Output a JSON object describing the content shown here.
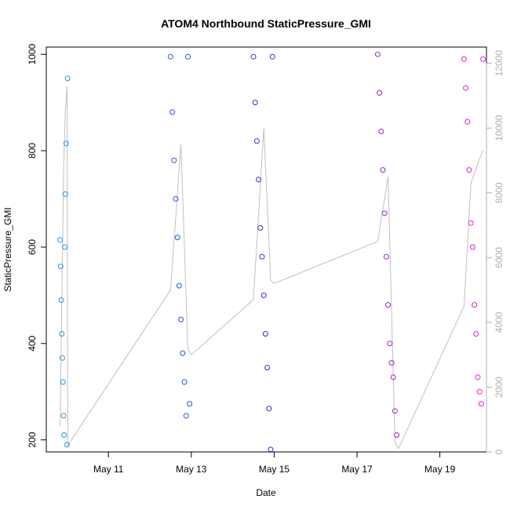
{
  "chart_data": {
    "type": "scatter",
    "title": "ATOM4 Northbound StaticPressure_GMI",
    "xlabel": "Date",
    "ylabel": "StaticPressure_GMI",
    "x_ticks": [
      "May 11",
      "May 13",
      "May 15",
      "May 17",
      "May 19"
    ],
    "y_ticks": [
      200,
      400,
      600,
      800,
      1000
    ],
    "y2_ticks": [
      0,
      2000,
      4000,
      6000,
      8000,
      10000,
      12000
    ],
    "xlim": [
      "2016-05-09T12:00",
      "2016-05-20T03:00"
    ],
    "ylim": [
      175,
      1015
    ],
    "y2lim": [
      0,
      12500
    ],
    "grid": false,
    "legend": "none",
    "colors": {
      "marker_start": "#1e9fe8",
      "marker_mid": "#2b2be0",
      "marker_end": "#f21bd0",
      "altitude_line": "#c0c0c0",
      "axis": "#000000",
      "right_axis": "#b0b0b0"
    },
    "series": [
      {
        "kind": "markers",
        "x": [
          "2016-05-09T20:00",
          "2016-05-09T20:20",
          "2016-05-09T20:40",
          "2016-05-09T21:00",
          "2016-05-09T21:20",
          "2016-05-09T21:40",
          "2016-05-09T22:00",
          "2016-05-09T22:20",
          "2016-05-09T22:40",
          "2016-05-09T23:00",
          "2016-05-09T23:30",
          "2016-05-10T00:00",
          "2016-05-10T00:20"
        ],
        "values": [
          615,
          560,
          490,
          420,
          370,
          320,
          250,
          210,
          600,
          710,
          815,
          190,
          950
        ]
      },
      {
        "kind": "markers",
        "x": [
          "2016-05-12T12:00",
          "2016-05-12T13:00",
          "2016-05-12T14:00",
          "2016-05-12T15:00",
          "2016-05-12T16:00",
          "2016-05-12T17:00",
          "2016-05-12T18:00",
          "2016-05-12T19:00",
          "2016-05-12T20:00",
          "2016-05-12T21:00",
          "2016-05-12T22:00",
          "2016-05-12T23:00"
        ],
        "values": [
          995,
          880,
          780,
          700,
          620,
          520,
          450,
          380,
          320,
          250,
          995,
          275
        ]
      },
      {
        "kind": "markers",
        "x": [
          "2016-05-14T12:00",
          "2016-05-14T13:00",
          "2016-05-14T14:00",
          "2016-05-14T15:00",
          "2016-05-14T16:00",
          "2016-05-14T17:00",
          "2016-05-14T18:00",
          "2016-05-14T19:00",
          "2016-05-14T20:00",
          "2016-05-14T21:00",
          "2016-05-14T22:00",
          "2016-05-14T23:00"
        ],
        "values": [
          995,
          900,
          820,
          740,
          640,
          580,
          500,
          420,
          350,
          265,
          180,
          995
        ]
      },
      {
        "kind": "markers",
        "x": [
          "2016-05-17T12:00",
          "2016-05-17T13:00",
          "2016-05-17T14:00",
          "2016-05-17T15:00",
          "2016-05-17T16:00",
          "2016-05-17T17:00",
          "2016-05-17T18:00",
          "2016-05-17T19:00",
          "2016-05-17T20:00",
          "2016-05-17T21:00",
          "2016-05-17T22:00",
          "2016-05-17T23:00"
        ],
        "values": [
          1000,
          920,
          840,
          760,
          670,
          580,
          480,
          400,
          360,
          330,
          260,
          210
        ]
      },
      {
        "kind": "markers",
        "x": [
          "2016-05-19T14:00",
          "2016-05-19T15:00",
          "2016-05-19T16:00",
          "2016-05-19T17:00",
          "2016-05-19T18:00",
          "2016-05-19T19:00",
          "2016-05-19T20:00",
          "2016-05-19T21:00",
          "2016-05-19T22:00",
          "2016-05-19T23:00",
          "2016-05-20T00:00",
          "2016-05-20T01:00"
        ],
        "values": [
          990,
          930,
          860,
          760,
          650,
          600,
          480,
          420,
          330,
          300,
          275,
          990
        ]
      },
      {
        "kind": "line",
        "axis": "right",
        "x": [
          "2016-05-09T20:00",
          "2016-05-09T22:00",
          "2016-05-09T23:00",
          "2016-05-10T00:00",
          "2016-05-10T00:30",
          "2016-05-12T12:00",
          "2016-05-12T18:00",
          "2016-05-12T22:00",
          "2016-05-13T00:00",
          "2016-05-14T12:00",
          "2016-05-14T18:00",
          "2016-05-14T22:00",
          "2016-05-15T00:00",
          "2016-05-17T12:00",
          "2016-05-17T18:00",
          "2016-05-17T22:00",
          "2016-05-18T00:00",
          "2016-05-19T14:00",
          "2016-05-19T18:00",
          "2016-05-20T00:00",
          "2016-05-20T01:00"
        ],
        "values": [
          800,
          8600,
          10500,
          11300,
          200,
          5000,
          9500,
          3200,
          3000,
          4700,
          10000,
          5300,
          5200,
          6500,
          8500,
          300,
          100,
          4500,
          8300,
          9200,
          9300
        ]
      }
    ]
  }
}
